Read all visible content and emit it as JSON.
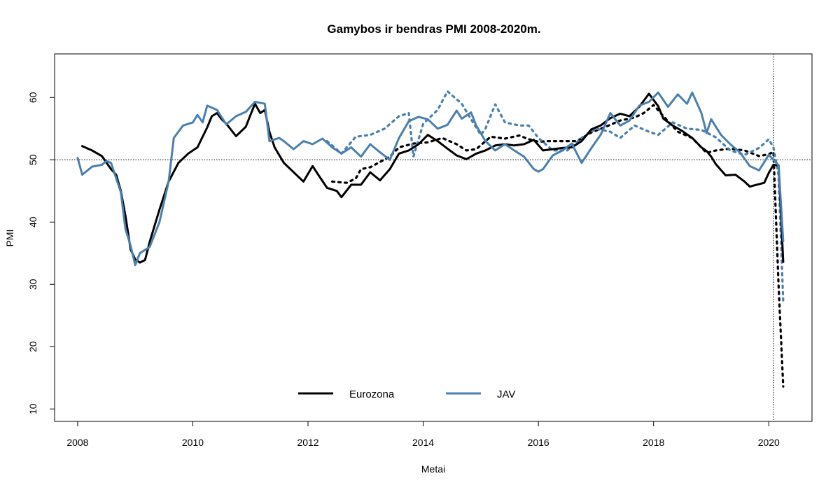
{
  "chart_data": {
    "type": "line",
    "title": "Gamybos ir bendras PMI 2008-2020m.",
    "xlabel": "Metai",
    "ylabel": "PMI",
    "xlim": [
      2007.6,
      2020.75
    ],
    "ylim": [
      8,
      67
    ],
    "x_ticks": [
      2008,
      2010,
      2012,
      2014,
      2016,
      2018,
      2020
    ],
    "y_ticks": [
      10,
      20,
      30,
      40,
      50,
      60
    ],
    "reference_lines": {
      "horizontal": 50,
      "vertical": 2020.08
    },
    "grid": false,
    "legend_position": "bottom-center",
    "series": [
      {
        "name": "Eurozona",
        "color": "#000000",
        "style": "solid",
        "points": [
          [
            2008.08,
            52.2
          ],
          [
            2008.25,
            51.5
          ],
          [
            2008.42,
            50.6
          ],
          [
            2008.58,
            48.5
          ],
          [
            2008.67,
            47.6
          ],
          [
            2008.75,
            45.0
          ],
          [
            2008.83,
            41.0
          ],
          [
            2008.92,
            35.6
          ],
          [
            2009.0,
            34.0
          ],
          [
            2009.08,
            33.5
          ],
          [
            2009.17,
            33.9
          ],
          [
            2009.25,
            36.8
          ],
          [
            2009.42,
            42.0
          ],
          [
            2009.58,
            46.5
          ],
          [
            2009.75,
            49.5
          ],
          [
            2009.92,
            51.0
          ],
          [
            2010.08,
            52.0
          ],
          [
            2010.25,
            55.2
          ],
          [
            2010.33,
            57.0
          ],
          [
            2010.42,
            57.5
          ],
          [
            2010.5,
            56.5
          ],
          [
            2010.58,
            55.8
          ],
          [
            2010.75,
            53.8
          ],
          [
            2010.92,
            55.3
          ],
          [
            2011.0,
            57.2
          ],
          [
            2011.08,
            59.0
          ],
          [
            2011.17,
            57.5
          ],
          [
            2011.25,
            58.0
          ],
          [
            2011.33,
            54.5
          ],
          [
            2011.42,
            52.0
          ],
          [
            2011.58,
            49.5
          ],
          [
            2011.75,
            48.0
          ],
          [
            2011.92,
            46.5
          ],
          [
            2012.08,
            49.0
          ],
          [
            2012.17,
            47.7
          ],
          [
            2012.33,
            45.5
          ],
          [
            2012.5,
            45.0
          ],
          [
            2012.58,
            44.0
          ],
          [
            2012.75,
            46.0
          ],
          [
            2012.92,
            46.0
          ],
          [
            2013.08,
            48.0
          ],
          [
            2013.25,
            46.7
          ],
          [
            2013.42,
            48.5
          ],
          [
            2013.58,
            51.0
          ],
          [
            2013.75,
            51.5
          ],
          [
            2013.92,
            52.5
          ],
          [
            2014.08,
            54.0
          ],
          [
            2014.25,
            53.0
          ],
          [
            2014.42,
            51.8
          ],
          [
            2014.58,
            50.7
          ],
          [
            2014.75,
            50.1
          ],
          [
            2014.92,
            51.0
          ],
          [
            2015.08,
            51.5
          ],
          [
            2015.25,
            52.3
          ],
          [
            2015.42,
            52.5
          ],
          [
            2015.58,
            52.3
          ],
          [
            2015.75,
            52.5
          ],
          [
            2015.92,
            53.2
          ],
          [
            2016.08,
            51.5
          ],
          [
            2016.25,
            51.7
          ],
          [
            2016.42,
            51.9
          ],
          [
            2016.58,
            52.0
          ],
          [
            2016.75,
            53.0
          ],
          [
            2016.92,
            54.9
          ],
          [
            2017.08,
            55.5
          ],
          [
            2017.25,
            56.7
          ],
          [
            2017.42,
            57.4
          ],
          [
            2017.58,
            57.0
          ],
          [
            2017.75,
            58.5
          ],
          [
            2017.92,
            60.6
          ],
          [
            2018.0,
            59.6
          ],
          [
            2018.08,
            58.6
          ],
          [
            2018.17,
            56.6
          ],
          [
            2018.33,
            55.5
          ],
          [
            2018.5,
            54.6
          ],
          [
            2018.67,
            53.5
          ],
          [
            2018.83,
            52.0
          ],
          [
            2018.92,
            51.4
          ],
          [
            2019.0,
            50.5
          ],
          [
            2019.08,
            49.3
          ],
          [
            2019.25,
            47.5
          ],
          [
            2019.42,
            47.6
          ],
          [
            2019.58,
            46.5
          ],
          [
            2019.67,
            45.7
          ],
          [
            2019.75,
            45.9
          ],
          [
            2019.92,
            46.3
          ],
          [
            2020.0,
            47.9
          ],
          [
            2020.08,
            49.2
          ],
          [
            2020.17,
            49.1
          ],
          [
            2020.25,
            33.6
          ]
        ]
      },
      {
        "name": "JAV",
        "color": "#4a7fae",
        "style": "solid",
        "points": [
          [
            2008.0,
            50.3
          ],
          [
            2008.08,
            47.6
          ],
          [
            2008.25,
            48.9
          ],
          [
            2008.42,
            49.2
          ],
          [
            2008.5,
            49.8
          ],
          [
            2008.58,
            49.5
          ],
          [
            2008.75,
            44.8
          ],
          [
            2008.83,
            38.9
          ],
          [
            2008.92,
            36.2
          ],
          [
            2009.0,
            33.1
          ],
          [
            2009.08,
            35.0
          ],
          [
            2009.25,
            36.0
          ],
          [
            2009.42,
            40.0
          ],
          [
            2009.58,
            46.5
          ],
          [
            2009.67,
            53.5
          ],
          [
            2009.83,
            55.5
          ],
          [
            2010.0,
            56.0
          ],
          [
            2010.08,
            57.2
          ],
          [
            2010.17,
            56.0
          ],
          [
            2010.25,
            58.7
          ],
          [
            2010.42,
            58.0
          ],
          [
            2010.58,
            55.7
          ],
          [
            2010.75,
            57.0
          ],
          [
            2010.92,
            57.7
          ],
          [
            2011.08,
            59.3
          ],
          [
            2011.25,
            59.0
          ],
          [
            2011.33,
            53.0
          ],
          [
            2011.5,
            53.5
          ],
          [
            2011.58,
            53.0
          ],
          [
            2011.75,
            51.7
          ],
          [
            2011.92,
            53.0
          ],
          [
            2012.08,
            52.5
          ],
          [
            2012.25,
            53.4
          ],
          [
            2012.42,
            52.0
          ],
          [
            2012.58,
            51.0
          ],
          [
            2012.75,
            52.0
          ],
          [
            2012.92,
            50.5
          ],
          [
            2013.08,
            52.5
          ],
          [
            2013.25,
            51.2
          ],
          [
            2013.42,
            50.0
          ],
          [
            2013.58,
            53.5
          ],
          [
            2013.75,
            56.2
          ],
          [
            2013.92,
            56.9
          ],
          [
            2014.08,
            56.5
          ],
          [
            2014.25,
            55.0
          ],
          [
            2014.42,
            55.6
          ],
          [
            2014.58,
            57.9
          ],
          [
            2014.67,
            56.6
          ],
          [
            2014.83,
            57.6
          ],
          [
            2014.92,
            55.5
          ],
          [
            2015.08,
            53.0
          ],
          [
            2015.25,
            51.5
          ],
          [
            2015.42,
            52.5
          ],
          [
            2015.58,
            51.5
          ],
          [
            2015.75,
            50.5
          ],
          [
            2015.92,
            48.5
          ],
          [
            2016.0,
            48.1
          ],
          [
            2016.08,
            48.5
          ],
          [
            2016.25,
            50.7
          ],
          [
            2016.42,
            51.5
          ],
          [
            2016.58,
            52.6
          ],
          [
            2016.75,
            49.5
          ],
          [
            2016.92,
            51.9
          ],
          [
            2017.08,
            54.0
          ],
          [
            2017.25,
            57.5
          ],
          [
            2017.42,
            55.5
          ],
          [
            2017.58,
            56.3
          ],
          [
            2017.75,
            58.7
          ],
          [
            2017.92,
            59.3
          ],
          [
            2018.08,
            60.8
          ],
          [
            2018.25,
            58.5
          ],
          [
            2018.42,
            60.5
          ],
          [
            2018.58,
            59.0
          ],
          [
            2018.67,
            60.8
          ],
          [
            2018.83,
            57.5
          ],
          [
            2018.92,
            54.3
          ],
          [
            2019.0,
            56.5
          ],
          [
            2019.17,
            54.0
          ],
          [
            2019.33,
            52.5
          ],
          [
            2019.5,
            51.2
          ],
          [
            2019.67,
            49.0
          ],
          [
            2019.83,
            48.3
          ],
          [
            2020.0,
            50.8
          ],
          [
            2020.17,
            49.1
          ],
          [
            2020.25,
            36.9
          ]
        ]
      },
      {
        "name": "",
        "color": "#000000",
        "style": "dotted",
        "points": [
          [
            2012.42,
            46.5
          ],
          [
            2012.67,
            46.3
          ],
          [
            2012.83,
            47.0
          ],
          [
            2012.92,
            48.5
          ],
          [
            2013.08,
            48.8
          ],
          [
            2013.42,
            50.5
          ],
          [
            2013.58,
            52.0
          ],
          [
            2013.83,
            52.6
          ],
          [
            2014.08,
            52.8
          ],
          [
            2014.33,
            53.5
          ],
          [
            2014.58,
            52.5
          ],
          [
            2014.75,
            51.5
          ],
          [
            2014.92,
            51.7
          ],
          [
            2015.17,
            53.7
          ],
          [
            2015.42,
            53.4
          ],
          [
            2015.67,
            53.9
          ],
          [
            2015.83,
            53.3
          ],
          [
            2016.0,
            52.9
          ],
          [
            2016.17,
            53.0
          ],
          [
            2016.42,
            53.0
          ],
          [
            2016.67,
            53.0
          ],
          [
            2016.92,
            54.4
          ],
          [
            2017.17,
            55.3
          ],
          [
            2017.42,
            56.3
          ],
          [
            2017.67,
            56.8
          ],
          [
            2017.83,
            57.5
          ],
          [
            2018.0,
            58.8
          ],
          [
            2018.17,
            57.0
          ],
          [
            2018.42,
            54.5
          ],
          [
            2018.67,
            53.5
          ],
          [
            2018.92,
            51.1
          ],
          [
            2019.08,
            51.5
          ],
          [
            2019.33,
            51.8
          ],
          [
            2019.58,
            51.5
          ],
          [
            2019.83,
            50.6
          ],
          [
            2020.0,
            50.9
          ],
          [
            2020.08,
            51.3
          ],
          [
            2020.17,
            29.7
          ],
          [
            2020.25,
            13.6
          ]
        ]
      },
      {
        "name": "",
        "color": "#4a7fae",
        "style": "dotted",
        "points": [
          [
            2012.33,
            53.0
          ],
          [
            2012.58,
            51.0
          ],
          [
            2012.83,
            53.7
          ],
          [
            2013.08,
            54.0
          ],
          [
            2013.33,
            55.0
          ],
          [
            2013.58,
            57.0
          ],
          [
            2013.75,
            57.5
          ],
          [
            2013.83,
            50.5
          ],
          [
            2014.0,
            55.8
          ],
          [
            2014.25,
            58.0
          ],
          [
            2014.42,
            61.0
          ],
          [
            2014.67,
            59.0
          ],
          [
            2014.83,
            56.5
          ],
          [
            2015.0,
            54.0
          ],
          [
            2015.08,
            55.0
          ],
          [
            2015.25,
            58.9
          ],
          [
            2015.42,
            56.0
          ],
          [
            2015.67,
            55.5
          ],
          [
            2015.83,
            55.5
          ],
          [
            2016.0,
            53.5
          ],
          [
            2016.25,
            51.5
          ],
          [
            2016.5,
            51.5
          ],
          [
            2016.75,
            53.5
          ],
          [
            2017.0,
            55.0
          ],
          [
            2017.25,
            54.5
          ],
          [
            2017.42,
            53.5
          ],
          [
            2017.67,
            55.5
          ],
          [
            2017.92,
            54.5
          ],
          [
            2018.08,
            54.0
          ],
          [
            2018.33,
            56.0
          ],
          [
            2018.58,
            55.0
          ],
          [
            2018.83,
            54.8
          ],
          [
            2019.08,
            53.6
          ],
          [
            2019.33,
            51.5
          ],
          [
            2019.58,
            50.8
          ],
          [
            2019.83,
            51.9
          ],
          [
            2020.0,
            53.3
          ],
          [
            2020.08,
            52.0
          ],
          [
            2020.17,
            47.5
          ],
          [
            2020.25,
            27.2
          ]
        ]
      }
    ]
  }
}
